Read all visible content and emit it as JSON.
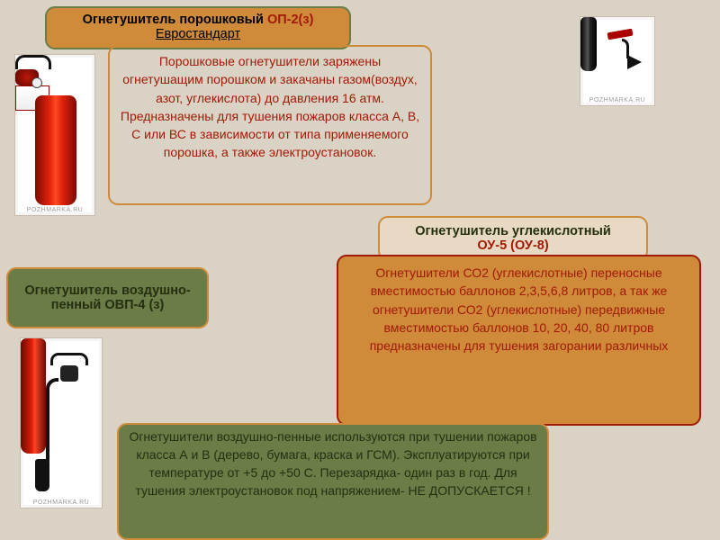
{
  "colors": {
    "page_bg": "#dad2c5",
    "orange": "#cf8a3a",
    "olive": "#6b7c47",
    "dark_red": "#a11a05",
    "cream": "#e7d9c3",
    "dark_olive_text": "#252f10"
  },
  "powder": {
    "title_prefix": "Огнетушитель порошковый",
    "title_code": "ОП-2(з)",
    "title_sub": "Евростандарт",
    "body": "Порошковые огнетушители заряжены огнетушащим порошком и закачаны газом(воздух, азот, углекислота) до давления 16 атм. Предназначены для тушения пожаров класса А, В, С или ВС в зависимости от типа применяемого порошка, а также электроустановок."
  },
  "foam": {
    "title": "Огнетушитель воздушно-пенный ОВП-4 (з)",
    "body": "Огнетушители воздушно-пенные используются при тушении пожаров класса А и В (дерево, бумага, краска и ГСМ). Эксплуатируются при температуре от +5 до +50 С. Перезарядка- один раз в год. Для тушения электроустановок под напряжением- НЕ ДОПУСКАЕТСЯ !"
  },
  "co2": {
    "title_prefix": "Огнетушитель углекислотный",
    "title_code": "ОУ-5 (ОУ-8)",
    "body": "Огнетушители СО2 (углекислотные) переносные вместимостью баллонов 2,3,5,6,8 литров, а так же огнетушители СО2 (углекислотные) передвижные вместимостью баллонов 10, 20, 40, 80 литров предназначены для тушения загорании различных"
  },
  "watermark": "POZHMARKA.RU"
}
